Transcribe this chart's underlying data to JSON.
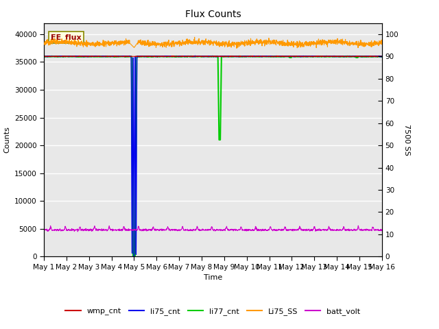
{
  "title": "Flux Counts",
  "xlabel": "Time",
  "ylabel_left": "Counts",
  "ylabel_right": "7500 SS",
  "xlim": [
    0,
    15
  ],
  "ylim_left": [
    0,
    42000
  ],
  "ylim_right": [
    0,
    105
  ],
  "x_ticks": [
    0,
    1,
    2,
    3,
    4,
    5,
    6,
    7,
    8,
    9,
    10,
    11,
    12,
    13,
    14,
    15
  ],
  "x_tick_labels": [
    "May 1",
    "May 2",
    "May 3",
    "May 4",
    "May 5",
    "May 6",
    "May 7",
    "May 8",
    "May 9",
    "May 10",
    "May 11",
    "May 12",
    "May 13",
    "May 14",
    "May 15",
    "May 16"
  ],
  "y_ticks_left": [
    0,
    5000,
    10000,
    15000,
    20000,
    25000,
    30000,
    35000,
    40000
  ],
  "y_ticks_right": [
    0,
    10,
    20,
    30,
    40,
    50,
    60,
    70,
    80,
    90,
    100
  ],
  "plot_bg_color": "#e8e8e8",
  "fig_bg_color": "#ffffff",
  "grid_color": "#ffffff",
  "annotation_text": "EE_flux",
  "colors": {
    "wmp_cnt": "#cc0000",
    "li75_cnt": "#0000ee",
    "li77_cnt": "#00cc00",
    "Li75_SS": "#ff9900",
    "batt_volt": "#cc00cc"
  },
  "legend_entries": [
    "wmp_cnt",
    "li75_cnt",
    "li77_cnt",
    "Li75_SS",
    "batt_volt"
  ],
  "wmp_cnt_base": 36000,
  "li75_cnt_base": 36000,
  "li77_cnt_base": 36000,
  "li75_ss_base": 96,
  "batt_volt_base": 4800,
  "figsize": [
    6.4,
    4.8
  ],
  "dpi": 100
}
